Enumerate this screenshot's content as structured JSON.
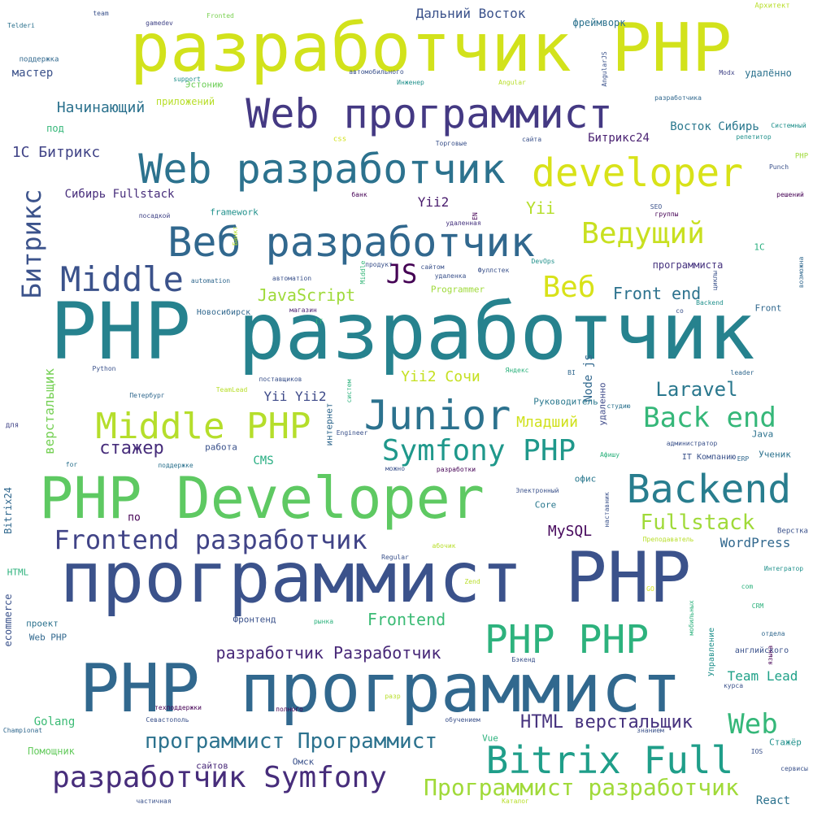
{
  "words": [
    {
      "text": "PHP разработчик",
      "color": "#26828e"
    },
    {
      "text": "PHP программист",
      "color": "#31688e"
    },
    {
      "text": "программист PHP",
      "color": "#3b528b"
    },
    {
      "text": "разработчик PHP",
      "color": "#d2e21b"
    },
    {
      "text": "PHP Developer",
      "color": "#5ec962"
    },
    {
      "text": "Web программист",
      "color": "#443983"
    },
    {
      "text": "Web разработчик",
      "color": "#2c728e"
    },
    {
      "text": "Веб разработчик",
      "color": "#31688e"
    },
    {
      "text": "developer",
      "color": "#d8e219"
    },
    {
      "text": "Junior",
      "color": "#2c728e"
    },
    {
      "text": "Middle PHP",
      "color": "#b5de2b"
    },
    {
      "text": "Backend",
      "color": "#287d8e"
    },
    {
      "text": "Bitrix Full",
      "color": "#1f9e89"
    },
    {
      "text": "PHP PHP",
      "color": "#2db27d"
    },
    {
      "text": "Middle",
      "color": "#3b528b"
    },
    {
      "text": "Symfony PHP",
      "color": "#1f988b"
    },
    {
      "text": "Back end",
      "color": "#35b779"
    },
    {
      "text": "разработчик Symfony",
      "color": "#472d7b"
    },
    {
      "text": "Frontend разработчик",
      "color": "#414487"
    },
    {
      "text": "Программист разработчик",
      "color": "#a0da39"
    },
    {
      "text": "Ведущий",
      "color": "#c8e020"
    },
    {
      "text": "Битрикс",
      "color": "#3b528b"
    },
    {
      "text": "Веб",
      "color": "#d8e219"
    },
    {
      "text": "Web",
      "color": "#35b779"
    },
    {
      "text": "программист Программист",
      "color": "#2c728e"
    },
    {
      "text": "Fullstack",
      "color": "#a0da39"
    },
    {
      "text": "разработчик Разработчик",
      "color": "#482878"
    },
    {
      "text": "Laravel",
      "color": "#2a788e"
    },
    {
      "text": "HTML верстальщик",
      "color": "#46327e"
    },
    {
      "text": "JS",
      "color": "#440154"
    },
    {
      "text": "Front end",
      "color": "#2c728e"
    },
    {
      "text": "стажер",
      "color": "#472d7b"
    },
    {
      "text": "JavaScript",
      "color": "#9fda3a"
    },
    {
      "text": "Младший",
      "color": "#d0e11c"
    },
    {
      "text": "Yii",
      "color": "#b5de2b"
    },
    {
      "text": "Frontend",
      "color": "#3bbb75"
    },
    {
      "text": "Team Lead",
      "color": "#1fa188"
    },
    {
      "text": "Yii2 Сочи",
      "color": "#c5e021"
    },
    {
      "text": "Начинающий",
      "color": "#2c728e"
    },
    {
      "text": "MySQL",
      "color": "#46085c"
    },
    {
      "text": "Yii Yii2",
      "color": "#3e4a89"
    },
    {
      "text": "WordPress",
      "color": "#31688e"
    },
    {
      "text": "1С Битрикс",
      "color": "#414487"
    },
    {
      "text": "Дальний Восток",
      "color": "#3b528b"
    },
    {
      "text": "Восток Сибирь",
      "color": "#2a788e"
    },
    {
      "text": "Битрикс24",
      "color": "#481f70"
    },
    {
      "text": "верстальщик",
      "color": "#75d054"
    },
    {
      "text": "Yii2",
      "color": "#481a6c"
    },
    {
      "text": "Node js",
      "color": "#31688e"
    },
    {
      "text": "Сибирь Fullstack",
      "color": "#472d7b"
    },
    {
      "text": "мастер",
      "color": "#3b528b"
    },
    {
      "text": "Golang",
      "color": "#3bbb75"
    },
    {
      "text": "Помощник",
      "color": "#65cb5e"
    },
    {
      "text": "Руководитель",
      "color": "#2a788e"
    },
    {
      "text": "CMS",
      "color": "#26ad81"
    },
    {
      "text": "framework",
      "color": "#21918c"
    },
    {
      "text": "Core",
      "color": "#2a788e"
    },
    {
      "text": "офис",
      "color": "#2a788e"
    },
    {
      "text": "проект",
      "color": "#2c728e"
    },
    {
      "text": "программиста",
      "color": "#46337f"
    },
    {
      "text": "Bitrix24",
      "color": "#31688e"
    },
    {
      "text": "интернет",
      "color": "#31688e"
    },
    {
      "text": "работа",
      "color": "#3b528b"
    },
    {
      "text": "IT Компанию",
      "color": "#3b528b"
    },
    {
      "text": "Ученик",
      "color": "#2c728e"
    },
    {
      "text": "удалённо",
      "color": "#2c728e"
    },
    {
      "text": "Стажёр",
      "color": "#21918c"
    },
    {
      "text": "1С",
      "color": "#29af7f"
    },
    {
      "text": "React",
      "color": "#2c728e"
    },
    {
      "text": "ecommerce",
      "color": "#3b528b"
    },
    {
      "text": "HTML",
      "color": "#2db27d"
    },
    {
      "text": "по",
      "color": "#440154"
    },
    {
      "text": "удаленно",
      "color": "#3e4a89"
    },
    {
      "text": "Эстонию",
      "color": "#6ece58"
    },
    {
      "text": "приложений",
      "color": "#b8de29"
    },
    {
      "text": "под",
      "color": "#35b779"
    },
    {
      "text": "фреймворк",
      "color": "#2c728e"
    },
    {
      "text": "Фронтенд",
      "color": "#3b528b"
    },
    {
      "text": "Vue",
      "color": "#2db27d"
    },
    {
      "text": "Java",
      "color": "#2c728e"
    },
    {
      "text": "Web PHP",
      "color": "#31688e"
    },
    {
      "text": "Front",
      "color": "#31688e"
    },
    {
      "text": "Programmer",
      "color": "#9fda3a"
    },
    {
      "text": "сайтов",
      "color": "#482878"
    },
    {
      "text": "Омск",
      "color": "#3b528b"
    },
    {
      "text": "Новосибирск",
      "color": "#31688e"
    },
    {
      "text": "Верстка",
      "color": "#3b528b"
    },
    {
      "text": "английского",
      "color": "#3b528b"
    },
    {
      "text": "Управление",
      "color": "#21918c"
    },
    {
      "text": "Архитект",
      "color": "#b8de29"
    },
    {
      "text": "поддержка",
      "color": "#31688e"
    },
    {
      "text": "AngularJS",
      "color": "#3b528b"
    },
    {
      "text": "Modx",
      "color": "#414487"
    },
    {
      "text": "разработчика",
      "color": "#31688e"
    },
    {
      "text": "team",
      "color": "#3b528b"
    },
    {
      "text": "gamedev",
      "color": "#414487"
    },
    {
      "text": "Fronted",
      "color": "#7ad151"
    },
    {
      "text": "Telderi",
      "color": "#2c728e"
    },
    {
      "text": "support",
      "color": "#21918c"
    },
    {
      "text": "Инженер",
      "color": "#21918c"
    },
    {
      "text": "Angular",
      "color": "#b8de29"
    },
    {
      "text": "автомобильного",
      "color": "#3b528b"
    },
    {
      "text": "css",
      "color": "#d2e21b"
    },
    {
      "text": "сайта",
      "color": "#3b528b"
    },
    {
      "text": "Торговые",
      "color": "#3b528b"
    },
    {
      "text": "Системный",
      "color": "#21918c"
    },
    {
      "text": "репетитор",
      "color": "#21918c"
    },
    {
      "text": "PHP",
      "color": "#9fda3a"
    },
    {
      "text": "Punch",
      "color": "#3b528b"
    },
    {
      "text": "решений",
      "color": "#440154"
    },
    {
      "text": "банк",
      "color": "#440154"
    },
    {
      "text": "посадкой",
      "color": "#414487"
    },
    {
      "text": "удаленная",
      "color": "#46337f"
    },
    {
      "text": "EN",
      "color": "#440154"
    },
    {
      "text": "SEO",
      "color": "#3b528b"
    },
    {
      "text": "группы",
      "color": "#440154"
    },
    {
      "text": "Банкт",
      "color": "#b8de29"
    },
    {
      "text": "автоматion",
      "color": "#3b528b"
    },
    {
      "text": "automation",
      "color": "#31688e"
    },
    {
      "text": "Middle",
      "color": "#35b779"
    },
    {
      "text": "продукт",
      "color": "#3b528b"
    },
    {
      "text": "сайтом",
      "color": "#3b528b"
    },
    {
      "text": "удаленка",
      "color": "#3b528b"
    },
    {
      "text": "Фуллстек",
      "color": "#3b528b"
    },
    {
      "text": "DevOps",
      "color": "#21918c"
    },
    {
      "text": "циклы",
      "color": "#3b528b"
    },
    {
      "text": "возможна",
      "color": "#31688e"
    },
    {
      "text": "Backend",
      "color": "#21918c"
    },
    {
      "text": "со",
      "color": "#3b528b"
    },
    {
      "text": "магазин",
      "color": "#481f70"
    },
    {
      "text": "IT",
      "color": "#35b779"
    },
    {
      "text": "Python",
      "color": "#3b528b"
    },
    {
      "text": "Яндекс",
      "color": "#2db27d"
    },
    {
      "text": "BI",
      "color": "#31688e"
    },
    {
      "text": "leader",
      "color": "#31688e"
    },
    {
      "text": "Петербург",
      "color": "#31688e"
    },
    {
      "text": "TeamLead",
      "color": "#b8de29"
    },
    {
      "text": "поставщиков",
      "color": "#3b528b"
    },
    {
      "text": "систем",
      "color": "#2db27d"
    },
    {
      "text": "студию",
      "color": "#2c728e"
    },
    {
      "text": "для",
      "color": "#414487"
    },
    {
      "text": "Engineer",
      "color": "#3b528b"
    },
    {
      "text": "администратор",
      "color": "#3b528b"
    },
    {
      "text": "поддержке",
      "color": "#2c728e"
    },
    {
      "text": "for",
      "color": "#2c728e"
    },
    {
      "text": "можно",
      "color": "#3b528b"
    },
    {
      "text": "разработки",
      "color": "#440154"
    },
    {
      "text": "Афишу",
      "color": "#2db27d"
    },
    {
      "text": "ERP",
      "color": "#31688e"
    },
    {
      "text": "Электронный",
      "color": "#3b528b"
    },
    {
      "text": "наставник",
      "color": "#3b528b"
    },
    {
      "text": "Преподаватель",
      "color": "#b8de29"
    },
    {
      "text": "абочик",
      "color": "#b8de29"
    },
    {
      "text": "Regular",
      "color": "#3b528b"
    },
    {
      "text": "Интегратор",
      "color": "#21918c"
    },
    {
      "text": "Zend",
      "color": "#b8de29"
    },
    {
      "text": "GO",
      "color": "#d2e21b"
    },
    {
      "text": "com",
      "color": "#2db27d"
    },
    {
      "text": "CRM",
      "color": "#2db27d"
    },
    {
      "text": "рынка",
      "color": "#2db27d"
    },
    {
      "text": "мобильных",
      "color": "#2db27d"
    },
    {
      "text": "отдела",
      "color": "#31688e"
    },
    {
      "text": "языка",
      "color": "#440154"
    },
    {
      "text": "Бэкенд",
      "color": "#3b528b"
    },
    {
      "text": "курса",
      "color": "#3b528b"
    },
    {
      "text": "разр",
      "color": "#b8de29"
    },
    {
      "text": "техподдержки",
      "color": "#440154"
    },
    {
      "text": "Севастополь",
      "color": "#3b528b"
    },
    {
      "text": "Championat",
      "color": "#31688e"
    },
    {
      "text": "обучением",
      "color": "#3b528b"
    },
    {
      "text": "знанием",
      "color": "#3b528b"
    },
    {
      "text": "IOS",
      "color": "#3b528b"
    },
    {
      "text": "сервисы",
      "color": "#3b528b"
    },
    {
      "text": "частичная",
      "color": "#3b528b"
    },
    {
      "text": "Каталог",
      "color": "#b8de29"
    },
    {
      "text": "полного",
      "color": "#440154"
    }
  ]
}
